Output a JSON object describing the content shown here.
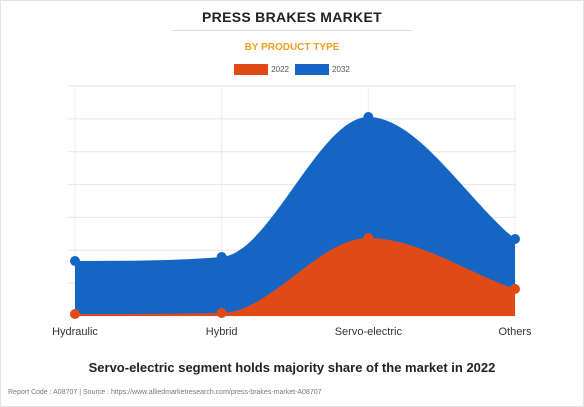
{
  "chart_data": {
    "type": "area",
    "title": "PRESS BRAKES MARKET",
    "subtitle": "BY PRODUCT TYPE",
    "categories": [
      "Hydraulic",
      "Hybrid",
      "Servo-electric",
      "Others"
    ],
    "series": [
      {
        "name": "2022",
        "color": "#e04a16",
        "values": [
          0.2,
          0.3,
          7.8,
          2.7
        ]
      },
      {
        "name": "2032",
        "color": "#1565c4",
        "values": [
          5.5,
          5.9,
          19.9,
          7.7
        ]
      }
    ],
    "ylim": [
      0,
      23
    ],
    "grid": true,
    "legend": "top-center",
    "xlabel": "",
    "ylabel": ""
  },
  "caption": "Servo-electric segment holds majority share of the market in 2022",
  "footer": {
    "report_code": "Report Code : A08707",
    "separator": "|",
    "source": "Source : https://www.alliedmarketresearch.com/press-brakes-market-A08707"
  }
}
